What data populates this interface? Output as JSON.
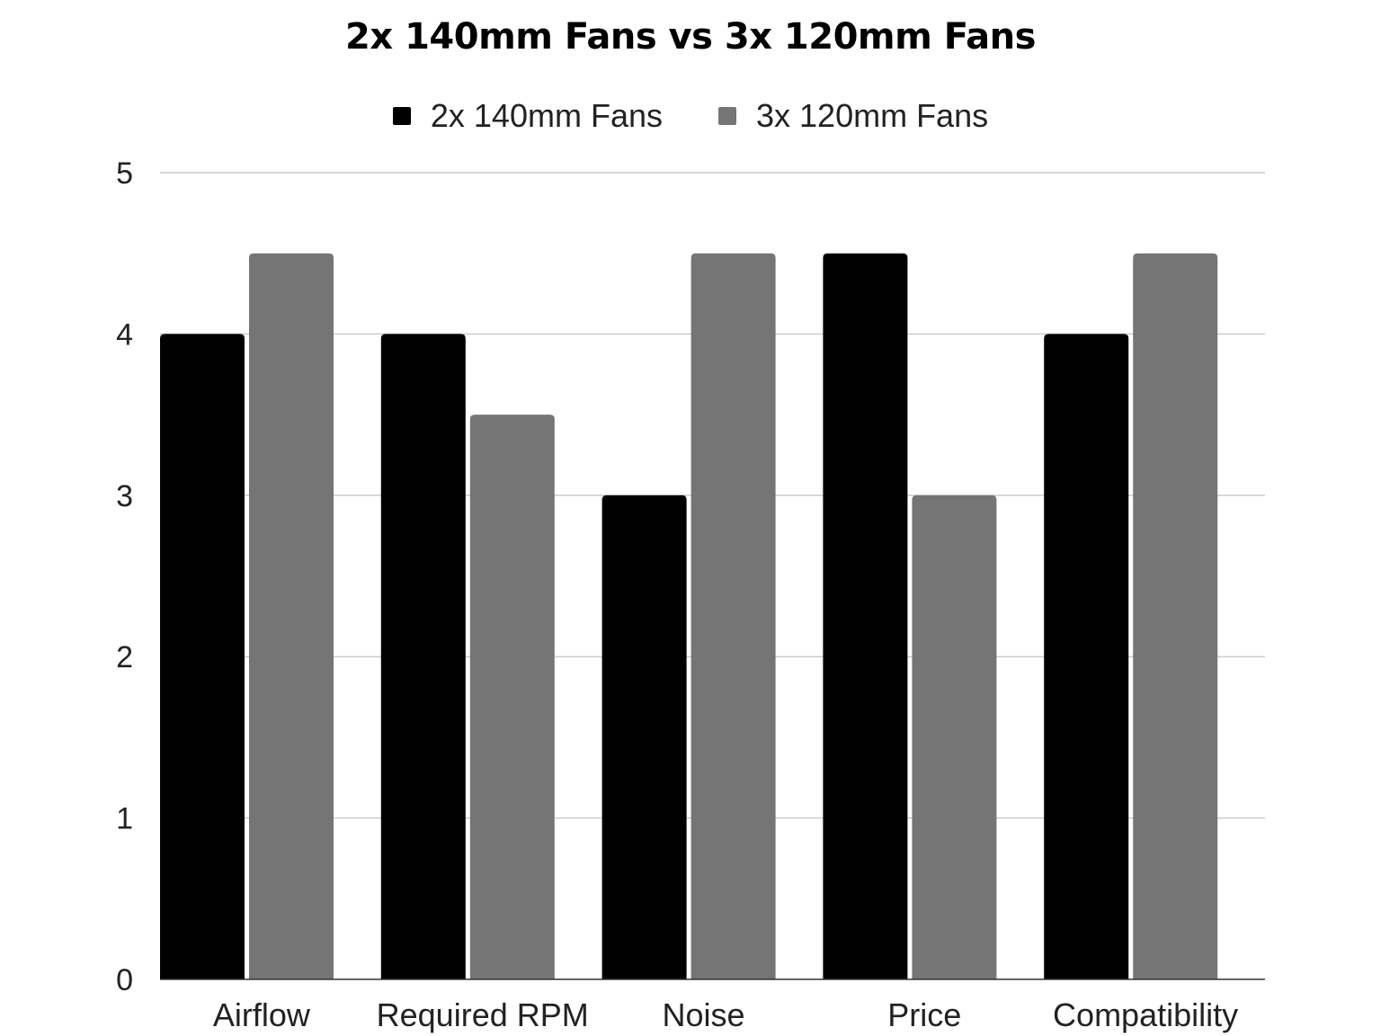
{
  "chart_data": {
    "type": "bar",
    "title": "2x 140mm Fans vs 3x 120mm Fans",
    "categories": [
      "Airflow",
      "Required RPM",
      "Noise",
      "Price",
      "Compatibility"
    ],
    "series": [
      {
        "name": "2x 140mm Fans",
        "color": "#000000",
        "values": [
          4,
          4,
          3,
          4.5,
          4
        ]
      },
      {
        "name": "3x 120mm Fans",
        "color": "#757575",
        "values": [
          4.5,
          3.5,
          4.5,
          3,
          4.5
        ]
      }
    ],
    "ylim": [
      0,
      5
    ],
    "yticks": [
      "0",
      "1",
      "2",
      "3",
      "4",
      "5"
    ],
    "xlabel": "",
    "ylabel": "",
    "grid": true,
    "legend_position": "top"
  }
}
